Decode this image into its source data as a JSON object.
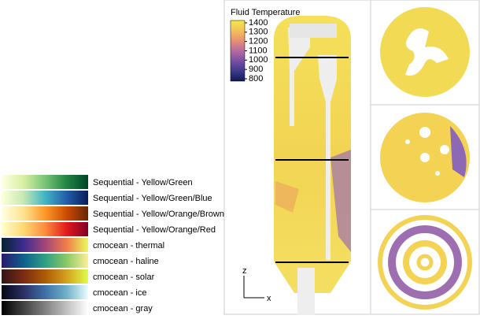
{
  "colormaps": [
    {
      "name": "Sequential - Yellow/Green",
      "colors": [
        "#ffffe5",
        "#d9f0a3",
        "#78c679",
        "#238443",
        "#004529"
      ]
    },
    {
      "name": "Sequential - Yellow/Green/Blue",
      "colors": [
        "#ffffd9",
        "#c7e9b4",
        "#41b6c4",
        "#225ea8",
        "#081d58"
      ]
    },
    {
      "name": "Sequential - Yellow/Orange/Brown",
      "colors": [
        "#ffffe5",
        "#fee391",
        "#fe9929",
        "#cc4c02",
        "#662506"
      ]
    },
    {
      "name": "Sequential - Yellow/Orange/Red",
      "colors": [
        "#ffffcc",
        "#fed976",
        "#fd8d3c",
        "#e31a1c",
        "#800026"
      ]
    },
    {
      "name": "cmocean - thermal",
      "colors": [
        "#04232f",
        "#3b2c8f",
        "#a1457a",
        "#f17c4a",
        "#e8fa5b"
      ]
    },
    {
      "name": "cmocean - haline",
      "colors": [
        "#2a186c",
        "#0f5f8c",
        "#2d9f85",
        "#8ac865",
        "#fdef9a"
      ]
    },
    {
      "name": "cmocean - solar",
      "colors": [
        "#331418",
        "#7a2a12",
        "#ad5a07",
        "#d3a01d",
        "#e0fd4a"
      ]
    },
    {
      "name": "cmocean - ice",
      "colors": [
        "#040613",
        "#2b2e62",
        "#3f6fa8",
        "#6fb1c7",
        "#eafdfd"
      ]
    },
    {
      "name": "cmocean - gray",
      "colors": [
        "#000000",
        "#404040",
        "#808080",
        "#c0c0c0",
        "#ffffff"
      ]
    }
  ],
  "legend": {
    "title": "Fluid Temperature",
    "ticks": [
      1400,
      1300,
      1200,
      1100,
      1000,
      900,
      800
    ],
    "colors": [
      "#f6e64a",
      "#f3c25a",
      "#e88f72",
      "#b56aa0",
      "#7a4fa3",
      "#3e3a8a",
      "#101a55"
    ]
  },
  "axes": {
    "z": "z",
    "x": "x"
  }
}
